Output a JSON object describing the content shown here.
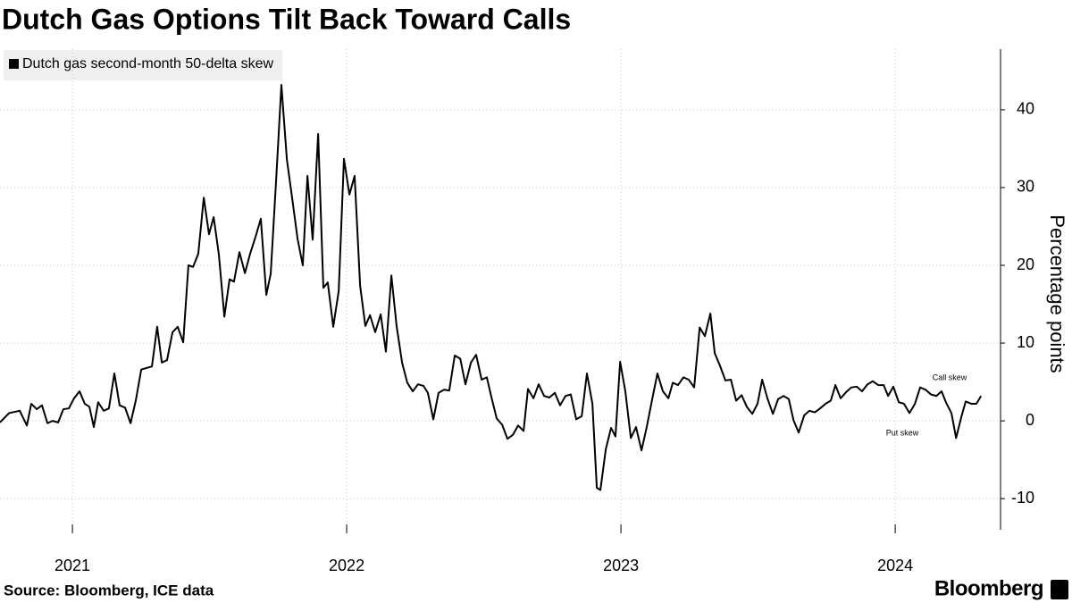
{
  "chart_data": {
    "type": "line",
    "title": "Dutch Gas Options Tilt Back Toward Calls",
    "y_axis_label": "Percentage points",
    "source": "Source: Bloomberg, ICE data",
    "brand": "Bloomberg",
    "annotations": [
      {
        "text": "Call skew",
        "color": "#7ed321"
      },
      {
        "text": "Put skew",
        "color": "#e8375a"
      }
    ],
    "x": [
      2020.736,
      2020.769,
      2020.808,
      2020.834,
      2020.85,
      2020.87,
      2020.889,
      2020.909,
      2020.928,
      2020.948,
      2020.967,
      2020.987,
      2021.006,
      2021.026,
      2021.045,
      2021.062,
      2021.078,
      2021.094,
      2021.114,
      2021.133,
      2021.153,
      2021.172,
      2021.192,
      2021.212,
      2021.231,
      2021.251,
      2021.27,
      2021.29,
      2021.309,
      2021.326,
      2021.345,
      2021.365,
      2021.384,
      2021.404,
      2021.423,
      2021.44,
      2021.459,
      2021.479,
      2021.498,
      2021.515,
      2021.534,
      2021.554,
      2021.573,
      2021.589,
      2021.609,
      2021.629,
      2021.648,
      2021.668,
      2021.687,
      2021.707,
      2021.723,
      2021.743,
      2021.762,
      2021.782,
      2021.801,
      2021.821,
      2021.84,
      2021.857,
      2021.876,
      2021.896,
      2021.915,
      2021.931,
      2021.951,
      2021.971,
      2021.99,
      2022.01,
      2022.029,
      2022.049,
      2022.068,
      2022.085,
      2022.104,
      2022.124,
      2022.143,
      2022.163,
      2022.182,
      2022.202,
      2022.221,
      2022.241,
      2022.26,
      2022.28,
      2022.296,
      2022.316,
      2022.335,
      2022.355,
      2022.374,
      2022.394,
      2022.414,
      2022.433,
      2022.453,
      2022.472,
      2022.492,
      2022.511,
      2022.528,
      2022.547,
      2022.567,
      2022.586,
      2022.606,
      2022.625,
      2022.645,
      2022.661,
      2022.681,
      2022.7,
      2022.72,
      2022.739,
      2022.759,
      2022.778,
      2022.798,
      2022.817,
      2022.837,
      2022.857,
      2022.876,
      2022.896,
      2022.912,
      2022.925,
      2022.945,
      2022.964,
      2022.98,
      2022.997,
      2023.016,
      2023.036,
      2023.055,
      2023.075,
      2023.094,
      2023.114,
      2023.133,
      2023.153,
      2023.173,
      2023.189,
      2023.208,
      2023.228,
      2023.247,
      2023.267,
      2023.287,
      2023.306,
      2023.326,
      2023.342,
      2023.361,
      2023.381,
      2023.401,
      2023.42,
      2023.44,
      2023.459,
      2023.479,
      2023.498,
      2023.515,
      2023.534,
      2023.554,
      2023.573,
      2023.593,
      2023.612,
      2023.629,
      2023.648,
      2023.668,
      2023.687,
      2023.707,
      2023.726,
      2023.746,
      2023.765,
      2023.782,
      2023.801,
      2023.821,
      2023.84,
      2023.86,
      2023.879,
      2023.899,
      2023.918,
      2023.938,
      2023.958,
      2023.974,
      2023.993,
      2024.013,
      2024.032,
      2024.052,
      2024.072,
      2024.091,
      2024.111,
      2024.13,
      2024.15,
      2024.169,
      2024.186,
      2024.205,
      2024.222,
      2024.241,
      2024.257,
      2024.277,
      2024.296,
      2024.313
    ],
    "series": [
      {
        "name": "Dutch gas second-month 50-delta skew",
        "color": "#000000",
        "values": [
          -0.2,
          1,
          1.3,
          -0.6,
          2.2,
          1.5,
          2,
          -0.3,
          0,
          -0.2,
          1.5,
          1.6,
          2.9,
          3.8,
          2.2,
          1.8,
          -0.8,
          2.4,
          1.3,
          1.6,
          6.1,
          2,
          1.7,
          -0.3,
          2.6,
          6.6,
          6.8,
          7,
          12.1,
          7.5,
          7.8,
          11.4,
          12.1,
          10.1,
          20,
          19.8,
          21.5,
          28.7,
          24,
          26.2,
          21.4,
          13.4,
          18.2,
          17.9,
          21.7,
          19,
          21.5,
          23.7,
          26,
          16.2,
          18.9,
          31.1,
          43.2,
          33.6,
          28.7,
          23.4,
          20,
          31.5,
          23.3,
          36.9,
          17.1,
          17.8,
          12.1,
          16.7,
          33.7,
          29.1,
          31.5,
          17.4,
          12.2,
          13.6,
          11.4,
          13.7,
          8.9,
          18.7,
          12.2,
          7.5,
          4.9,
          3.8,
          4.7,
          4.5,
          3.6,
          0.2,
          3.6,
          4,
          3.9,
          8.4,
          8,
          4.7,
          7.5,
          8.5,
          5.3,
          5.6,
          3,
          0.3,
          -0.5,
          -2.3,
          -1.8,
          -0.6,
          -1.3,
          4.1,
          2.9,
          4.7,
          3.2,
          3,
          3.6,
          2,
          3.2,
          3.4,
          0.2,
          0.6,
          6.1,
          2.2,
          -8.6,
          -8.9,
          -3.6,
          -0.9,
          -2,
          7.6,
          3.8,
          -2.2,
          -0.8,
          -3.8,
          -0.8,
          2.8,
          6.1,
          3.8,
          2.9,
          4.9,
          4.6,
          5.6,
          5.3,
          4.3,
          12,
          10.9,
          13.8,
          8.7,
          7.1,
          5.2,
          5.3,
          2.6,
          3.3,
          1.8,
          0.9,
          2.2,
          5.3,
          2.9,
          0.9,
          2.8,
          3.2,
          2.8,
          0.1,
          -1.5,
          0.7,
          1.3,
          1.1,
          1.6,
          2.2,
          2.6,
          4.6,
          2.9,
          3.7,
          4.3,
          4.4,
          3.8,
          4.7,
          5.1,
          4.6,
          4.6,
          3.2,
          4.4,
          2.4,
          2.2,
          1,
          2.2,
          4.3,
          4,
          3.4,
          3.2,
          3.8,
          2.3,
          1,
          -2.2,
          0.5,
          2.5,
          2.2,
          2.2,
          3.2
        ]
      }
    ],
    "xlim": [
      2020.736,
      2024.384
    ],
    "xticks": [
      2021,
      2022,
      2023,
      2024
    ],
    "ylim": [
      -14,
      47.8
    ],
    "yticks": [
      -10,
      0,
      10,
      20,
      30,
      40
    ],
    "grid": true,
    "legend": "top-left"
  }
}
